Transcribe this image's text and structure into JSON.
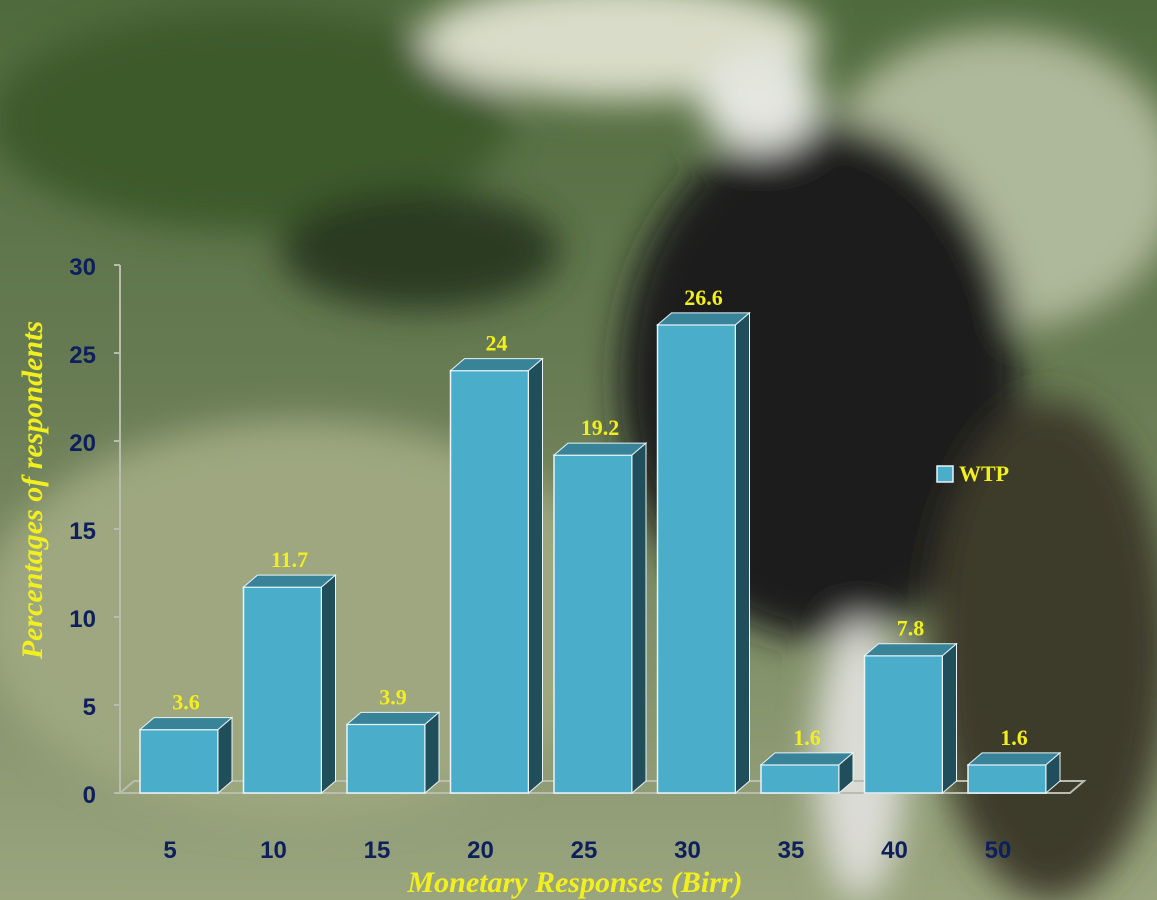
{
  "chart_data": {
    "type": "bar",
    "x_label": "Monetary Responses (Birr)",
    "y_label": "Percentages of respondents",
    "categories": [
      "5",
      "10",
      "15",
      "20",
      "25",
      "30",
      "35",
      "40",
      "50"
    ],
    "series": [
      {
        "name": "WTP",
        "color": "#4aaecb",
        "values": [
          3.6,
          11.7,
          3.9,
          24,
          19.2,
          26.6,
          1.6,
          7.8,
          1.6
        ]
      }
    ],
    "ylim": [
      0,
      30
    ],
    "yticks": [
      0,
      5,
      10,
      15,
      20,
      25,
      30
    ],
    "legend": "right"
  }
}
